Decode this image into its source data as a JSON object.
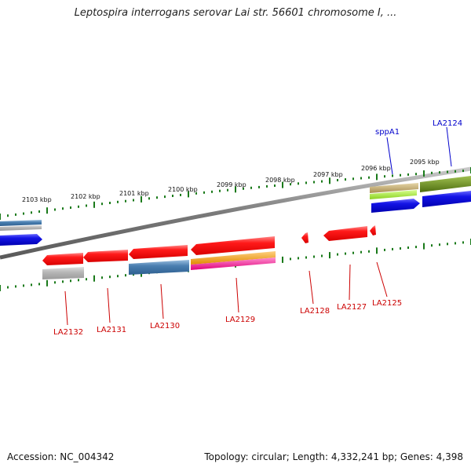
{
  "title": "Leptospira interrogans serovar Lai str. 56601 chromosome I, ...",
  "footer": {
    "accession": "Accession: NC_004342",
    "summary": "Topology: circular; Length: 4,332,241 bp; Genes: 4,398"
  },
  "kbp_ticks": [
    {
      "label": "2103 kbp"
    },
    {
      "label": "2102 kbp"
    },
    {
      "label": "2101 kbp"
    },
    {
      "label": "2100 kbp"
    },
    {
      "label": "2099 kbp"
    },
    {
      "label": "2098 kbp"
    },
    {
      "label": "2097 kbp"
    },
    {
      "label": "2096 kbp"
    },
    {
      "label": "2095 kbp"
    }
  ],
  "gene_labels": {
    "sppA1": "sppA1",
    "LA2124": "LA2124",
    "LA2125": "LA2125",
    "LA2127": "LA2127",
    "LA2128": "LA2128",
    "LA2129": "LA2129",
    "LA2130": "LA2130",
    "LA2131": "LA2131",
    "LA2132": "LA2132"
  },
  "colors": {
    "backbone": "#8a8a8a",
    "ruler": "#1a7a1a",
    "gene_red": "#ff1a1a",
    "cds_blue": "#1414e6",
    "steel_blue": "#4a7fb0",
    "grey": "#b4b4b4",
    "tan": "#bfa870",
    "lime": "#a8f040",
    "olive": "#6b8a20",
    "orange": "#f0a020",
    "magenta": "#ff1aa0",
    "label_blue": "#0000cc",
    "label_red": "#cc0000"
  }
}
